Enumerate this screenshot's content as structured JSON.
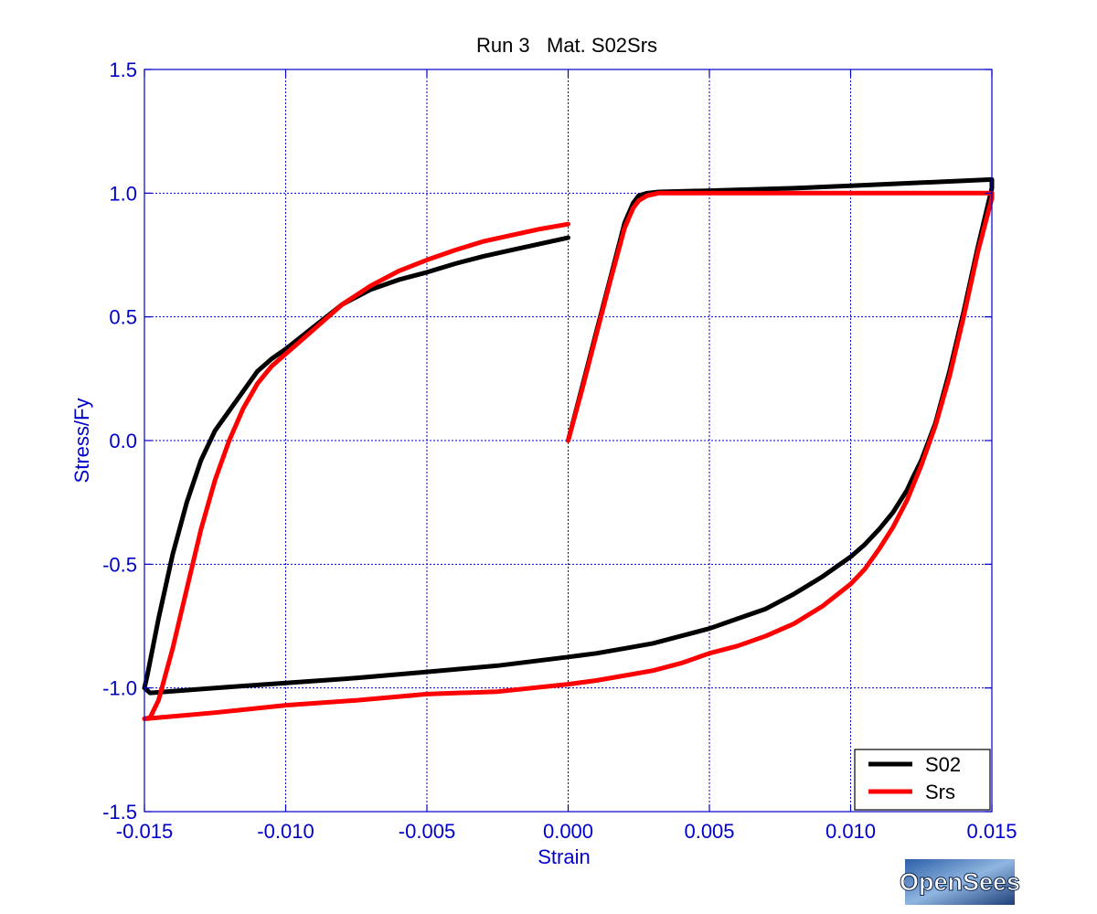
{
  "chart_data": {
    "type": "line",
    "title": "Run 3   Mat. S02Srs",
    "xlabel": "Strain",
    "ylabel": "Stress/Fy",
    "xlim": [
      -0.015,
      0.015
    ],
    "ylim": [
      -1.5,
      1.5
    ],
    "xticks": [
      -0.015,
      -0.01,
      -0.005,
      0.0,
      0.005,
      0.01,
      0.015
    ],
    "xtick_labels": [
      "-0.015",
      "-0.010",
      "-0.005",
      "0.000",
      "0.005",
      "0.010",
      "0.015"
    ],
    "yticks": [
      -1.5,
      -1.0,
      -0.5,
      0.0,
      0.5,
      1.0,
      1.5
    ],
    "ytick_labels": [
      "-1.5",
      "-1.0",
      "-0.5",
      "0.0",
      "0.5",
      "1.0",
      "1.5"
    ],
    "grid": true,
    "legend_position": "bottom-right",
    "series": [
      {
        "name": "S02",
        "color": "#000000",
        "x": [
          0.0,
          0.0005,
          0.001,
          0.0015,
          0.002,
          0.0023,
          0.0025,
          0.0028,
          0.0032,
          0.005,
          0.008,
          0.01,
          0.012,
          0.015,
          0.015,
          0.0145,
          0.014,
          0.0135,
          0.013,
          0.0125,
          0.0122,
          0.012,
          0.0115,
          0.011,
          0.0105,
          0.01,
          0.009,
          0.008,
          0.007,
          0.006,
          0.005,
          0.004,
          0.003,
          0.002,
          0.001,
          0.0,
          -0.0025,
          -0.005,
          -0.0075,
          -0.01,
          -0.0125,
          -0.0148,
          -0.015,
          -0.0149,
          -0.0145,
          -0.014,
          -0.0135,
          -0.013,
          -0.0125,
          -0.012,
          -0.0115,
          -0.011,
          -0.0105,
          -0.01,
          -0.009,
          -0.008,
          -0.007,
          -0.006,
          -0.005,
          -0.004,
          -0.003,
          -0.002,
          -0.001,
          0.0
        ],
        "y": [
          0.0,
          0.22,
          0.44,
          0.66,
          0.88,
          0.96,
          0.99,
          1.0,
          1.005,
          1.01,
          1.02,
          1.03,
          1.04,
          1.055,
          1.02,
          0.78,
          0.52,
          0.28,
          0.07,
          -0.08,
          -0.15,
          -0.2,
          -0.29,
          -0.36,
          -0.42,
          -0.47,
          -0.55,
          -0.62,
          -0.68,
          -0.72,
          -0.76,
          -0.79,
          -0.82,
          -0.84,
          -0.86,
          -0.875,
          -0.91,
          -0.935,
          -0.96,
          -0.98,
          -1.0,
          -1.02,
          -1.0,
          -0.95,
          -0.72,
          -0.46,
          -0.25,
          -0.08,
          0.04,
          0.12,
          0.2,
          0.28,
          0.33,
          0.37,
          0.46,
          0.55,
          0.61,
          0.65,
          0.68,
          0.715,
          0.745,
          0.77,
          0.795,
          0.82
        ]
      },
      {
        "name": "Srs",
        "color": "#ff0000",
        "x": [
          0.0,
          0.0005,
          0.001,
          0.0015,
          0.002,
          0.0023,
          0.0025,
          0.0028,
          0.0032,
          0.005,
          0.008,
          0.01,
          0.012,
          0.015,
          0.015,
          0.0145,
          0.014,
          0.0135,
          0.013,
          0.0125,
          0.012,
          0.0115,
          0.011,
          0.0105,
          0.01,
          0.009,
          0.008,
          0.007,
          0.006,
          0.005,
          0.004,
          0.003,
          0.002,
          0.001,
          0.0,
          -0.0025,
          -0.005,
          -0.0075,
          -0.01,
          -0.0125,
          -0.015,
          -0.0148,
          -0.0145,
          -0.014,
          -0.0135,
          -0.013,
          -0.0125,
          -0.012,
          -0.0115,
          -0.011,
          -0.0105,
          -0.01,
          -0.009,
          -0.008,
          -0.007,
          -0.006,
          -0.005,
          -0.004,
          -0.003,
          -0.002,
          -0.001,
          0.0
        ],
        "y": [
          0.0,
          0.21,
          0.43,
          0.65,
          0.86,
          0.94,
          0.97,
          0.99,
          1.0,
          1.0,
          1.0,
          1.0,
          1.0,
          1.0,
          0.98,
          0.76,
          0.5,
          0.26,
          0.06,
          -0.1,
          -0.24,
          -0.35,
          -0.44,
          -0.52,
          -0.58,
          -0.67,
          -0.74,
          -0.79,
          -0.83,
          -0.86,
          -0.9,
          -0.93,
          -0.95,
          -0.97,
          -0.985,
          -1.015,
          -1.025,
          -1.05,
          -1.07,
          -1.1,
          -1.125,
          -1.12,
          -1.05,
          -0.84,
          -0.6,
          -0.36,
          -0.16,
          0.0,
          0.13,
          0.23,
          0.3,
          0.35,
          0.45,
          0.55,
          0.625,
          0.685,
          0.73,
          0.77,
          0.805,
          0.83,
          0.855,
          0.875
        ]
      }
    ]
  },
  "logo": {
    "text": "OpenSees"
  }
}
